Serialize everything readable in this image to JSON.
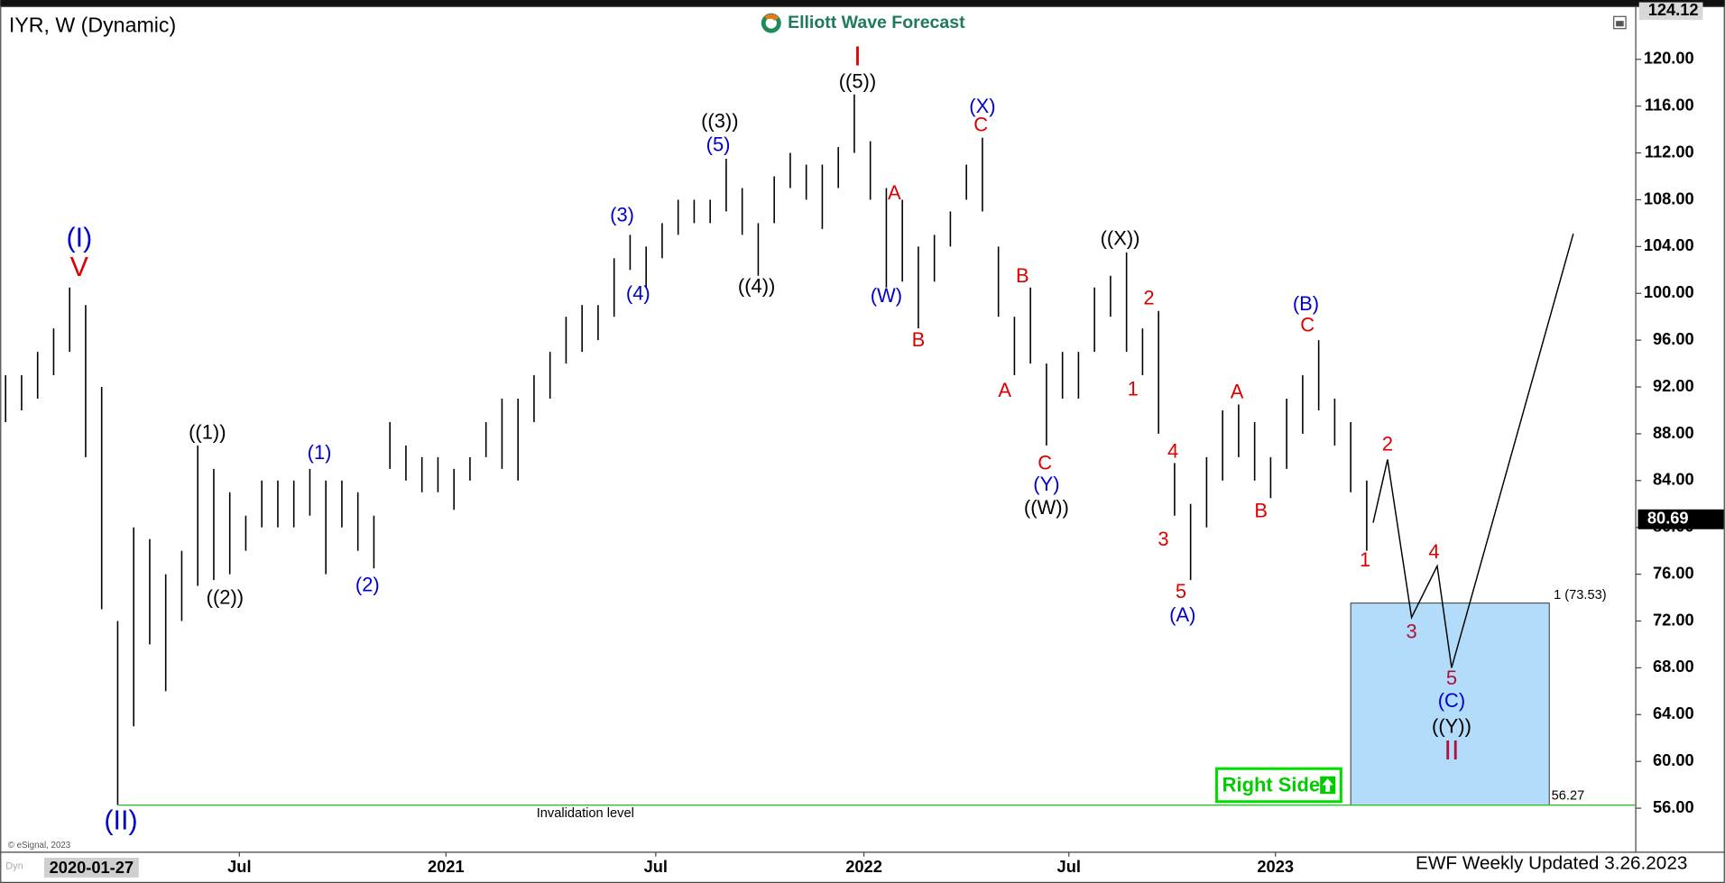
{
  "chart_data": {
    "type": "ohlc",
    "title": "IYR, W (Dynamic)",
    "logo": "Elliott Wave Forecast",
    "footer": "EWF Weekly Updated 3.26.2023",
    "copyright": "© eSignal, 2023",
    "mode": "Dyn",
    "start_date": "2020-01-27",
    "side_label": "Right Side",
    "bar_color": "#000000",
    "ylim": [
      52.24,
      124.6
    ],
    "xlim": [
      -0.34,
      101.8
    ],
    "yticks": [
      {
        "value": 56,
        "label": "56.00"
      },
      {
        "value": 60,
        "label": "60.00"
      },
      {
        "value": 64,
        "label": "64.00"
      },
      {
        "value": 68,
        "label": "68.00"
      },
      {
        "value": 72,
        "label": "72.00"
      },
      {
        "value": 76,
        "label": "76.00"
      },
      {
        "value": 80,
        "label": "80.00"
      },
      {
        "value": 84,
        "label": "84.00"
      },
      {
        "value": 88,
        "label": "88.00"
      },
      {
        "value": 92,
        "label": "92.00"
      },
      {
        "value": 96,
        "label": "96.00"
      },
      {
        "value": 100,
        "label": "100.00"
      },
      {
        "value": 104,
        "label": "104.00"
      },
      {
        "value": 108,
        "label": "108.00"
      },
      {
        "value": 112,
        "label": "112.00"
      },
      {
        "value": 116,
        "label": "116.00"
      },
      {
        "value": 120,
        "label": "120.00"
      }
    ],
    "xticks": [
      {
        "value": 14.6,
        "label": "Jul"
      },
      {
        "value": 27.5,
        "label": "2021"
      },
      {
        "value": 40.6,
        "label": "Jul"
      },
      {
        "value": 53.6,
        "label": "2022"
      },
      {
        "value": 66.4,
        "label": "Jul"
      },
      {
        "value": 79.3,
        "label": "2023"
      }
    ],
    "axis_top": 124.12,
    "last_price": 80.69,
    "high": [
      93,
      93,
      95,
      97,
      100.5,
      99,
      92,
      72,
      80,
      79,
      76,
      78,
      87,
      85,
      83,
      81,
      84,
      84,
      84,
      85,
      84,
      84,
      83,
      81,
      89,
      87,
      86,
      86,
      85,
      86,
      89,
      91,
      91,
      93,
      95,
      98,
      99,
      99,
      103,
      105,
      104,
      106,
      108,
      108,
      108,
      111.5,
      109,
      106,
      110,
      112,
      111,
      111,
      112.5,
      117,
      113,
      109,
      108,
      104,
      105,
      107,
      111,
      113.3,
      104,
      98,
      100.5,
      94,
      95,
      95,
      100.5,
      101.5,
      103.5,
      97,
      98.5,
      85.5,
      82,
      86,
      90,
      90.5,
      89,
      86,
      91,
      93,
      96,
      91,
      89,
      84
    ],
    "low": [
      89,
      90,
      91,
      93,
      95,
      86,
      73,
      56.3,
      63,
      70,
      66,
      72,
      75,
      75.5,
      76,
      78,
      80,
      80,
      80,
      81,
      76,
      80,
      78,
      76.5,
      85,
      84,
      83,
      83,
      81.5,
      84,
      86,
      85,
      84,
      89,
      91,
      94,
      95,
      96,
      98,
      102,
      100.5,
      103,
      105,
      106,
      106,
      107,
      105,
      101.5,
      106,
      109,
      108,
      105.5,
      109,
      112,
      108,
      100.5,
      101,
      97,
      101,
      104,
      108,
      107,
      98,
      93,
      94,
      87,
      91,
      91,
      95,
      98,
      95,
      93,
      88,
      81,
      75.5,
      80,
      84,
      86,
      84,
      82.5,
      85,
      88,
      90,
      87,
      83,
      78
    ],
    "projection": {
      "x": [
        85.4,
        86.3,
        87.8,
        89.4,
        90.3,
        97.9
      ],
      "values": [
        80.4,
        85.8,
        72.3,
        76.7,
        68.0,
        105.1
      ],
      "color": "#000000"
    },
    "target_box": {
      "x": [
        84,
        96.4
      ],
      "top": 73.53,
      "bottom": 56.27,
      "top_label": "1 (73.53)",
      "color": "#b3dcfa"
    },
    "invalidation": {
      "value": 56.27,
      "label": "Invalidation level",
      "color": "#22bb22"
    },
    "annotations": [
      {
        "text": "(I)",
        "color": "#0000cc",
        "x": 4.6,
        "y": 104.6
      },
      {
        "text": "V",
        "color": "#dd0000",
        "x": 4.6,
        "y": 102.1
      },
      {
        "text": "(II)",
        "color": "#0000cc",
        "x": 7.2,
        "y": 54.8
      },
      {
        "text": "((1))",
        "color": "#000000",
        "x": 12.6,
        "y": 88.0
      },
      {
        "text": "((2))",
        "color": "#000000",
        "x": 13.7,
        "y": 73.9
      },
      {
        "text": "(1)",
        "color": "#0000cc",
        "x": 19.6,
        "y": 86.3
      },
      {
        "text": "(2)",
        "color": "#0000cc",
        "x": 22.6,
        "y": 75.0
      },
      {
        "text": "(3)",
        "color": "#0000cc",
        "x": 38.5,
        "y": 106.6
      },
      {
        "text": "(4)",
        "color": "#0000cc",
        "x": 39.5,
        "y": 99.9
      },
      {
        "text": "((3))",
        "color": "#000000",
        "x": 44.6,
        "y": 114.6
      },
      {
        "text": "(5)",
        "color": "#0000cc",
        "x": 44.5,
        "y": 112.6
      },
      {
        "text": "((4))",
        "color": "#000000",
        "x": 46.9,
        "y": 100.5
      },
      {
        "text": "I",
        "color": "#dd0000",
        "x": 53.2,
        "y": 120.1
      },
      {
        "text": "((5))",
        "color": "#000000",
        "x": 53.2,
        "y": 118.0
      },
      {
        "text": "A",
        "color": "#dd0000",
        "x": 55.5,
        "y": 108.5
      },
      {
        "text": "(W)",
        "color": "#0000cc",
        "x": 55.0,
        "y": 99.7
      },
      {
        "text": "B",
        "color": "#dd0000",
        "x": 57.0,
        "y": 95.9
      },
      {
        "text": "(X)",
        "color": "#0000cc",
        "x": 61.0,
        "y": 115.9
      },
      {
        "text": "C",
        "color": "#dd0000",
        "x": 60.9,
        "y": 114.3
      },
      {
        "text": "B",
        "color": "#dd0000",
        "x": 63.5,
        "y": 101.4
      },
      {
        "text": "A",
        "color": "#dd0000",
        "x": 62.4,
        "y": 91.6
      },
      {
        "text": "C",
        "color": "#dd0000",
        "x": 64.9,
        "y": 85.4
      },
      {
        "text": "(Y)",
        "color": "#0000cc",
        "x": 65.0,
        "y": 83.6
      },
      {
        "text": "((W))",
        "color": "#000000",
        "x": 65.0,
        "y": 81.6
      },
      {
        "text": "((X))",
        "color": "#000000",
        "x": 69.6,
        "y": 104.6
      },
      {
        "text": "2",
        "color": "#dd0000",
        "x": 71.4,
        "y": 99.5
      },
      {
        "text": "1",
        "color": "#dd0000",
        "x": 70.4,
        "y": 91.7
      },
      {
        "text": "4",
        "color": "#dd0000",
        "x": 72.9,
        "y": 86.4
      },
      {
        "text": "3",
        "color": "#dd0000",
        "x": 72.3,
        "y": 78.9
      },
      {
        "text": "5",
        "color": "#dd0000",
        "x": 73.4,
        "y": 74.4
      },
      {
        "text": "(A)",
        "color": "#0000cc",
        "x": 73.5,
        "y": 72.4
      },
      {
        "text": "A",
        "color": "#dd0000",
        "x": 76.9,
        "y": 91.5
      },
      {
        "text": "B",
        "color": "#dd0000",
        "x": 78.4,
        "y": 81.3
      },
      {
        "text": "(B)",
        "color": "#0000cc",
        "x": 81.2,
        "y": 99.0
      },
      {
        "text": "C",
        "color": "#dd0000",
        "x": 81.3,
        "y": 97.2
      },
      {
        "text": "2",
        "color": "#dd0000",
        "x": 86.3,
        "y": 87.0
      },
      {
        "text": "1",
        "color": "#dd0000",
        "x": 84.9,
        "y": 77.1
      },
      {
        "text": "4",
        "color": "#dd0000",
        "x": 89.2,
        "y": 77.8
      },
      {
        "text": "3",
        "color": "#b0103a",
        "x": 87.8,
        "y": 71.0
      },
      {
        "text": "5",
        "color": "#b0103a",
        "x": 90.3,
        "y": 67.0
      },
      {
        "text": "(C)",
        "color": "#0000cc",
        "x": 90.3,
        "y": 65.1
      },
      {
        "text": "((Y))",
        "color": "#000000",
        "x": 90.3,
        "y": 62.9
      },
      {
        "text": "II",
        "color": "#b0103a",
        "x": 90.3,
        "y": 60.8
      }
    ]
  }
}
